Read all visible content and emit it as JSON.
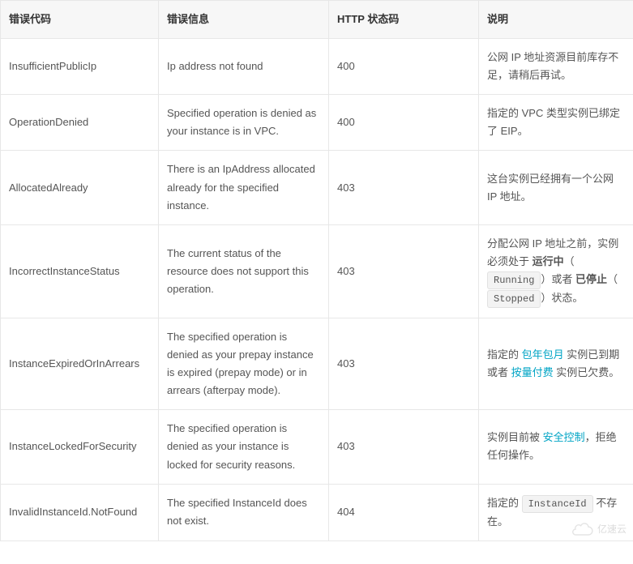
{
  "table": {
    "headers": {
      "code": "错误代码",
      "message": "错误信息",
      "http": "HTTP 状态码",
      "desc": "说明"
    },
    "rows": [
      {
        "code": "InsufficientPublicIp",
        "message": "Ip address not found",
        "http": "400",
        "desc_parts": [
          {
            "t": "text",
            "v": "公网 IP 地址资源目前库存不足，请稍后再试。"
          }
        ]
      },
      {
        "code": "OperationDenied",
        "message": "Specified operation is denied as your instance is in VPC.",
        "http": "400",
        "desc_parts": [
          {
            "t": "text",
            "v": "指定的 VPC 类型实例已绑定了 EIP。"
          }
        ]
      },
      {
        "code": "AllocatedAlready",
        "message": "There is an IpAddress allocated already for the specified instance.",
        "http": "403",
        "desc_parts": [
          {
            "t": "text",
            "v": "这台实例已经拥有一个公网 IP 地址。"
          }
        ]
      },
      {
        "code": "IncorrectInstanceStatus",
        "message": "The current status of the resource does not support this operation.",
        "http": "403",
        "desc_parts": [
          {
            "t": "text",
            "v": "分配公网 IP 地址之前，实例必须处于 "
          },
          {
            "t": "bold",
            "v": "运行中"
          },
          {
            "t": "text",
            "v": "（"
          },
          {
            "t": "code",
            "v": "Running"
          },
          {
            "t": "text",
            "v": "）或者 "
          },
          {
            "t": "bold",
            "v": "已停止"
          },
          {
            "t": "text",
            "v": "（"
          },
          {
            "t": "code",
            "v": "Stopped"
          },
          {
            "t": "text",
            "v": "）状态。"
          }
        ]
      },
      {
        "code": "InstanceExpiredOrInArrears",
        "message": "The specified operation is denied as your prepay instance is expired (prepay mode) or in arrears (afterpay mode).",
        "http": "403",
        "desc_parts": [
          {
            "t": "text",
            "v": "指定的 "
          },
          {
            "t": "link",
            "v": "包年包月"
          },
          {
            "t": "text",
            "v": " 实例已到期或者 "
          },
          {
            "t": "link",
            "v": "按量付费"
          },
          {
            "t": "text",
            "v": " 实例已欠费。"
          }
        ]
      },
      {
        "code": "InstanceLockedForSecurity",
        "message": "The specified operation is denied as your instance is locked for security reasons.",
        "http": "403",
        "desc_parts": [
          {
            "t": "text",
            "v": "实例目前被 "
          },
          {
            "t": "link",
            "v": "安全控制"
          },
          {
            "t": "text",
            "v": "，拒绝任何操作。"
          }
        ]
      },
      {
        "code": "InvalidInstanceId.NotFound",
        "message": "The specified InstanceId does not exist.",
        "http": "404",
        "desc_parts": [
          {
            "t": "text",
            "v": "指定的 "
          },
          {
            "t": "code",
            "v": "InstanceId"
          },
          {
            "t": "text",
            "v": " 不存在。"
          }
        ]
      }
    ]
  },
  "watermark": {
    "text": "亿速云",
    "color": "#bfbfbf"
  },
  "colors": {
    "border": "#e7e7e7",
    "header_bg": "#f7f7f7",
    "text": "#333333",
    "cell_text": "#555555",
    "link": "#00a4c5",
    "code_bg": "#f3f3f3",
    "code_border": "#e1e1e1"
  }
}
